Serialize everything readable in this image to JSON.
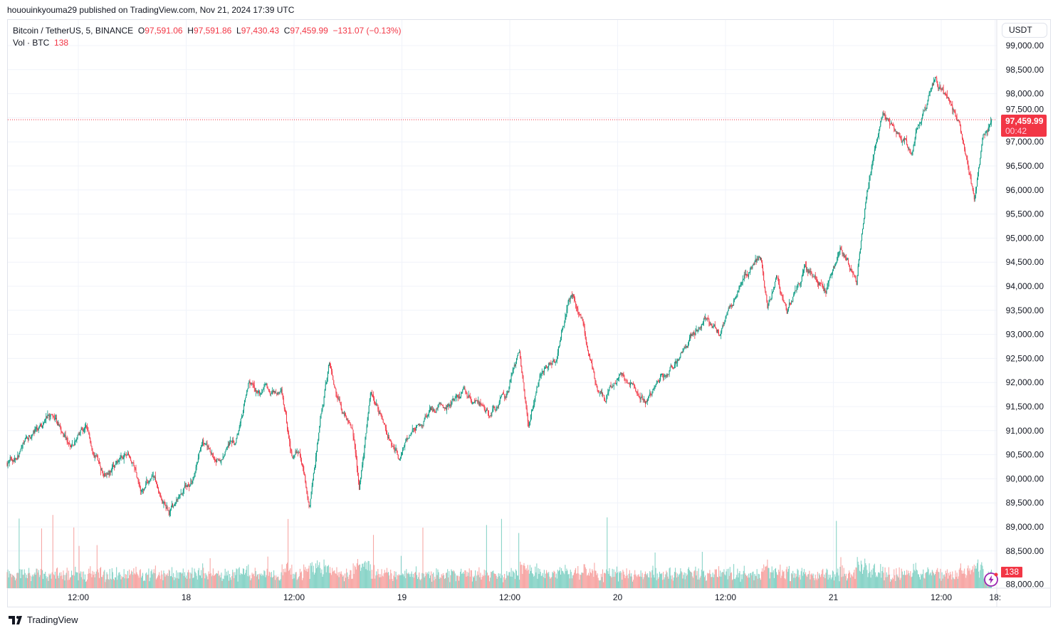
{
  "publisher_line": "hououinkyouma29 published on TradingView.com, Nov 21, 2024 17:39 UTC",
  "legend": {
    "symbol": "Bitcoin / TetherUS, 5, BINANCE",
    "open_label": "O",
    "open": "97,591.06",
    "high_label": "H",
    "high": "97,591.86",
    "low_label": "L",
    "low": "97,430.43",
    "close_label": "C",
    "close": "97,459.99",
    "change": "−131.07 (−0.13%)",
    "vol_label": "Vol · BTC",
    "vol": "138"
  },
  "currency_button": "USDT",
  "current_price": {
    "value": "97,459.99",
    "countdown": "00:42"
  },
  "footer_logo": "TradingView",
  "colors": {
    "up": "#089981",
    "down": "#f23645",
    "vol_up": "#8ad4c8",
    "vol_down": "#f7a8a6",
    "grid": "#f0f3fa"
  },
  "chart_data": {
    "type": "candlestick",
    "interval": "5",
    "ylim": [
      87800,
      99300
    ],
    "y_ticks": [
      "99,000.00",
      "98,500.00",
      "98,000.00",
      "97,500.00",
      "97,000.00",
      "96,500.00",
      "96,000.00",
      "95,500.00",
      "95,000.00",
      "94,500.00",
      "94,000.00",
      "93,500.00",
      "93,000.00",
      "92,500.00",
      "92,000.00",
      "91,500.00",
      "91,000.00",
      "90,500.00",
      "90,000.00",
      "89,500.00",
      "89,000.00",
      "88,500.00",
      "88,000.00"
    ],
    "y_tick_values": [
      99000,
      98500,
      98000,
      97500,
      97000,
      96500,
      96000,
      95500,
      95000,
      94500,
      94000,
      93500,
      93000,
      92500,
      92000,
      91500,
      91000,
      90500,
      90000,
      89500,
      89000,
      88500,
      88000
    ],
    "x_ticks": [
      {
        "label": "12:00",
        "time": "2024-11-17T12:00"
      },
      {
        "label": "18",
        "time": "2024-11-18T00:00"
      },
      {
        "label": "12:00",
        "time": "2024-11-18T12:00"
      },
      {
        "label": "19",
        "time": "2024-11-19T00:00"
      },
      {
        "label": "12:00",
        "time": "2024-11-19T12:00"
      },
      {
        "label": "20",
        "time": "2024-11-20T00:00"
      },
      {
        "label": "12:00",
        "time": "2024-11-20T12:00"
      },
      {
        "label": "21",
        "time": "2024-11-21T00:00"
      },
      {
        "label": "12:00",
        "time": "2024-11-21T12:00"
      },
      {
        "label": "18:",
        "time": "2024-11-21T18:00"
      }
    ],
    "last_price": 97459.99,
    "price_path": [
      [
        "2024-11-17T04:05",
        90330
      ],
      [
        "2024-11-17T09:15",
        91370
      ],
      [
        "2024-11-17T11:10",
        90630
      ],
      [
        "2024-11-17T12:50",
        91070
      ],
      [
        "2024-11-17T14:45",
        90190
      ],
      [
        "2024-11-17T17:30",
        90480
      ],
      [
        "2024-11-17T19:10",
        89740
      ],
      [
        "2024-11-17T20:20",
        90110
      ],
      [
        "2024-11-17T22:05",
        89300
      ],
      [
        "2024-11-18T00:40",
        89890
      ],
      [
        "2024-11-18T01:50",
        90770
      ],
      [
        "2024-11-18T03:05",
        90400
      ],
      [
        "2024-11-18T05:25",
        90700
      ],
      [
        "2024-11-18T07:00",
        91960
      ],
      [
        "2024-11-18T08:10",
        91740
      ],
      [
        "2024-11-18T10:35",
        91890
      ],
      [
        "2024-11-18T11:45",
        90480
      ],
      [
        "2024-11-18T12:35",
        90630
      ],
      [
        "2024-11-18T13:45",
        89520
      ],
      [
        "2024-11-18T14:30",
        90630
      ],
      [
        "2024-11-18T15:55",
        92400
      ],
      [
        "2024-11-18T17:20",
        91510
      ],
      [
        "2024-11-18T18:30",
        91220
      ],
      [
        "2024-11-18T19:15",
        89810
      ],
      [
        "2024-11-18T20:30",
        91810
      ],
      [
        "2024-11-18T22:05",
        91070
      ],
      [
        "2024-11-18T23:40",
        90400
      ],
      [
        "2024-11-19T01:15",
        91070
      ],
      [
        "2024-11-19T03:35",
        91370
      ],
      [
        "2024-11-19T06:45",
        91810
      ],
      [
        "2024-11-19T09:35",
        91370
      ],
      [
        "2024-11-19T11:30",
        91660
      ],
      [
        "2024-11-19T13:05",
        92550
      ],
      [
        "2024-11-19T14:05",
        91140
      ],
      [
        "2024-11-19T15:30",
        92250
      ],
      [
        "2024-11-19T17:05",
        92480
      ],
      [
        "2024-11-19T18:40",
        93660
      ],
      [
        "2024-11-19T19:05",
        93810
      ],
      [
        "2024-11-19T20:15",
        93140
      ],
      [
        "2024-11-19T21:25",
        92110
      ],
      [
        "2024-11-19T22:35",
        91590
      ],
      [
        "2024-11-20T00:10",
        92250
      ],
      [
        "2024-11-20T03:00",
        91590
      ],
      [
        "2024-11-20T05:20",
        92180
      ],
      [
        "2024-11-20T06:55",
        92550
      ],
      [
        "2024-11-20T09:40",
        93290
      ],
      [
        "2024-11-20T11:15",
        92990
      ],
      [
        "2024-11-20T12:50",
        93730
      ],
      [
        "2024-11-20T14:05",
        94400
      ],
      [
        "2024-11-20T15:55",
        94620
      ],
      [
        "2024-11-20T16:40",
        93590
      ],
      [
        "2024-11-20T17:40",
        94180
      ],
      [
        "2024-11-20T18:50",
        93370
      ],
      [
        "2024-11-20T20:50",
        94400
      ],
      [
        "2024-11-20T23:10",
        93960
      ],
      [
        "2024-11-21T00:45",
        94840
      ],
      [
        "2024-11-21T02:35",
        94110
      ],
      [
        "2024-11-21T03:30",
        95660
      ],
      [
        "2024-11-21T04:20",
        96550
      ],
      [
        "2024-11-21T05:30",
        97650
      ],
      [
        "2024-11-21T07:05",
        97140
      ],
      [
        "2024-11-21T08:40",
        96840
      ],
      [
        "2024-11-21T09:50",
        97580
      ],
      [
        "2024-11-21T11:20",
        98250
      ],
      [
        "2024-11-21T12:40",
        97880
      ],
      [
        "2024-11-21T13:50",
        97430
      ],
      [
        "2024-11-21T15:00",
        96550
      ],
      [
        "2024-11-21T15:40",
        95800
      ],
      [
        "2024-11-21T16:35",
        96990
      ],
      [
        "2024-11-21T17:35",
        97460
      ]
    ]
  }
}
